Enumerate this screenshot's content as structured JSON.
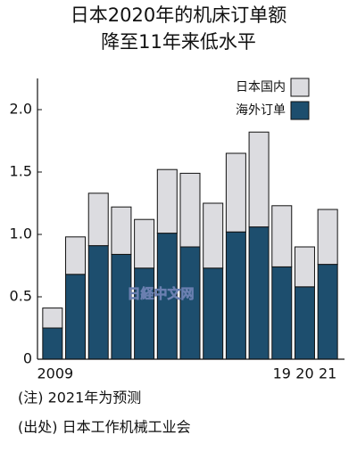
{
  "chart_data": {
    "type": "stacked_bar",
    "title": [
      "日本2020年的机床订单额",
      "降至11年来低水平"
    ],
    "categories": [
      "2009",
      null,
      null,
      null,
      null,
      null,
      null,
      null,
      null,
      null,
      "19",
      "20",
      "21"
    ],
    "series": [
      {
        "name": "海外订单",
        "color": "#1d4e6e",
        "values": [
          0.25,
          0.68,
          0.91,
          0.84,
          0.73,
          1.01,
          0.9,
          0.73,
          1.02,
          1.06,
          0.74,
          0.58,
          0.76
        ]
      },
      {
        "name": "日本国内",
        "color": "#dcdce0",
        "values": [
          0.16,
          0.3,
          0.42,
          0.38,
          0.39,
          0.51,
          0.59,
          0.52,
          0.63,
          0.76,
          0.49,
          0.32,
          0.44
        ]
      }
    ],
    "ylim": [
      0,
      2.25
    ],
    "yticks": [
      0,
      0.5,
      {
        "value": 1,
        "label": "1.0"
      },
      1.5,
      {
        "value": 2,
        "label": "2.0"
      }
    ],
    "watermark": "日経中文网",
    "notes": [
      "(注) 2021年为预测",
      "(出处) 日本工作机械工业会"
    ]
  }
}
